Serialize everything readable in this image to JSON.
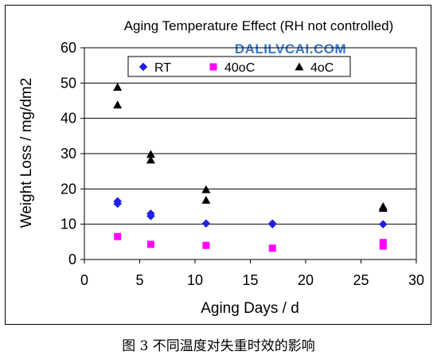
{
  "caption": "图 3 不同温度对失重时效的影响",
  "watermark": "DALILVCAI.COM",
  "chart_data": {
    "type": "scatter",
    "title": "Aging Temperature Effect (RH not controlled)",
    "xlabel": "Aging Days / d",
    "ylabel": "Weight Loss / mg/dm2",
    "xlim": [
      0,
      30
    ],
    "ylim": [
      0,
      60
    ],
    "xticks": [
      0,
      5,
      10,
      15,
      20,
      25,
      30
    ],
    "yticks": [
      0,
      10,
      20,
      30,
      40,
      50,
      60
    ],
    "grid": "horizontal",
    "legend_position": "top-center",
    "series": [
      {
        "name": "RT",
        "marker": "diamond",
        "color": "#1f1fe6",
        "points": [
          [
            3,
            16.5
          ],
          [
            3,
            15.8
          ],
          [
            6,
            13.0
          ],
          [
            6,
            12.3
          ],
          [
            11,
            10.2
          ],
          [
            17,
            10.2
          ],
          [
            17,
            10.0
          ],
          [
            27,
            10.0
          ]
        ]
      },
      {
        "name": "40oC",
        "marker": "square",
        "color": "#ff00ff",
        "points": [
          [
            3,
            6.5
          ],
          [
            6,
            4.3
          ],
          [
            11,
            4.0
          ],
          [
            17,
            3.2
          ],
          [
            27,
            4.8
          ],
          [
            27,
            3.8
          ]
        ]
      },
      {
        "name": "4oC",
        "marker": "triangle",
        "color": "#000000",
        "points": [
          [
            3,
            48.8
          ],
          [
            3,
            43.8
          ],
          [
            6,
            29.8
          ],
          [
            6,
            28.2
          ],
          [
            11,
            19.8
          ],
          [
            11,
            16.8
          ],
          [
            27,
            15.0
          ],
          [
            27,
            14.5
          ]
        ]
      }
    ]
  }
}
